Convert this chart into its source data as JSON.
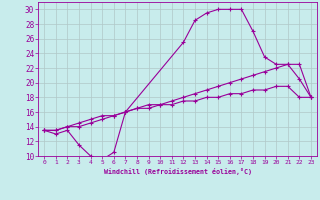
{
  "xlabel": "Windchill (Refroidissement éolien,°C)",
  "background_color": "#c8ecec",
  "line_color": "#990099",
  "grid_color": "#b0c8c8",
  "xlim": [
    -0.5,
    23.5
  ],
  "ylim": [
    10,
    31
  ],
  "xticks": [
    0,
    1,
    2,
    3,
    4,
    5,
    6,
    7,
    8,
    9,
    10,
    11,
    12,
    13,
    14,
    15,
    16,
    17,
    18,
    19,
    20,
    21,
    22,
    23
  ],
  "yticks": [
    10,
    12,
    14,
    16,
    18,
    20,
    22,
    24,
    26,
    28,
    30
  ],
  "line1_x": [
    0,
    1,
    2,
    3,
    4,
    5,
    6,
    7,
    12,
    13,
    14,
    15,
    16,
    17,
    18,
    19,
    20,
    21,
    22,
    23
  ],
  "line1_y": [
    13.5,
    13.0,
    13.5,
    11.5,
    10.0,
    9.5,
    10.5,
    16.0,
    25.5,
    28.5,
    29.5,
    30.0,
    30.0,
    30.0,
    27.0,
    23.5,
    22.5,
    22.5,
    20.5,
    18.0
  ],
  "line2_x": [
    0,
    1,
    2,
    3,
    4,
    5,
    6,
    7,
    8,
    9,
    10,
    11,
    12,
    13,
    14,
    15,
    16,
    17,
    18,
    19,
    20,
    21,
    22,
    23
  ],
  "line2_y": [
    13.5,
    13.5,
    14.0,
    14.0,
    14.5,
    15.0,
    15.5,
    16.0,
    16.5,
    17.0,
    17.0,
    17.5,
    18.0,
    18.5,
    19.0,
    19.5,
    20.0,
    20.5,
    21.0,
    21.5,
    22.0,
    22.5,
    22.5,
    18.0
  ],
  "line3_x": [
    0,
    1,
    2,
    3,
    4,
    5,
    6,
    7,
    8,
    9,
    10,
    11,
    12,
    13,
    14,
    15,
    16,
    17,
    18,
    19,
    20,
    21,
    22,
    23
  ],
  "line3_y": [
    13.5,
    13.5,
    14.0,
    14.5,
    15.0,
    15.5,
    15.5,
    16.0,
    16.5,
    16.5,
    17.0,
    17.0,
    17.5,
    17.5,
    18.0,
    18.0,
    18.5,
    18.5,
    19.0,
    19.0,
    19.5,
    19.5,
    18.0,
    18.0
  ],
  "marker_x1": [
    0,
    1,
    2,
    3,
    4,
    5,
    6,
    7,
    12,
    13,
    14,
    15,
    16,
    17,
    18,
    19,
    20,
    21,
    22,
    23
  ],
  "marker_y1": [
    13.5,
    13.0,
    13.5,
    11.5,
    10.0,
    9.5,
    10.5,
    16.0,
    25.5,
    28.5,
    29.5,
    30.0,
    30.0,
    30.0,
    27.0,
    23.5,
    22.5,
    22.5,
    20.5,
    18.0
  ]
}
